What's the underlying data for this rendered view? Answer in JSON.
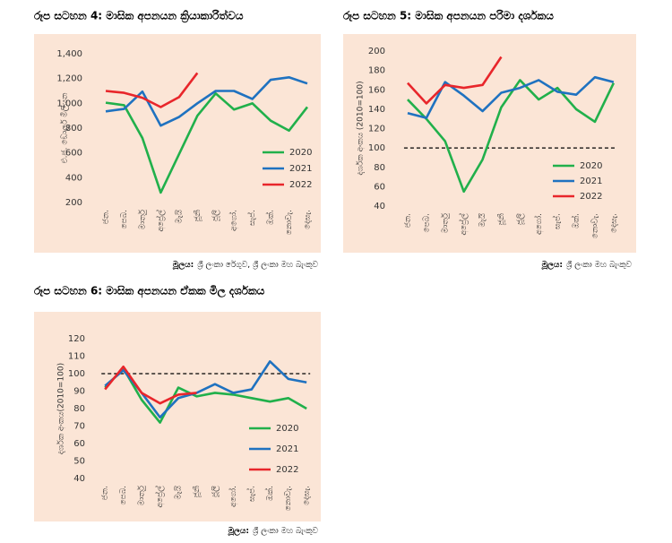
{
  "chart_data": [
    {
      "type": "line",
      "title": "රූප සටහන 4: මාසික අපනයන ක්‍රියාකාරිත්වය",
      "y_label": "එ.ජ. ඩොලර් මිලියන",
      "categories": [
        "ජන.",
        "පෙබ.",
        "මාර්තු",
        "අප්‍රේල්",
        "මැයි",
        "ජූනි",
        "ජූලි",
        "අගෝ.",
        "සැප්.",
        "ඔක්.",
        "නොවැ.",
        "දෙසැ."
      ],
      "series": [
        {
          "name": "2020",
          "color": "#21b04b",
          "values": [
            1005,
            985,
            720,
            280,
            590,
            900,
            1080,
            950,
            1000,
            860,
            780,
            970
          ]
        },
        {
          "name": "2021",
          "color": "#1f72c0",
          "values": [
            935,
            955,
            1095,
            820,
            890,
            1000,
            1100,
            1100,
            1035,
            1190,
            1210,
            1160
          ]
        },
        {
          "name": "2022",
          "color": "#e8262b",
          "values": [
            1100,
            1085,
            1045,
            970,
            1050,
            1245,
            null,
            null,
            null,
            null,
            null,
            null
          ]
        }
      ],
      "ylim": [
        200,
        1400
      ],
      "yticks": [
        200,
        400,
        600,
        800,
        {
          "value": 1000,
          "label": "1,000"
        },
        {
          "value": 1200,
          "label": "1,200"
        },
        {
          "value": 1400,
          "label": "1,400"
        }
      ],
      "legend": "right",
      "background": "#fbe5d6",
      "source_label": "මූලය:",
      "source": "ශ්‍රී ලංකා රේගුව, ශ්‍රී ලංකා මහ බැංකුව"
    },
    {
      "type": "line",
      "title": "රූප සටහන 5: මාසික අපනයන පරිමා දර්ශකය",
      "y_label": "දර්ශක අංකය (2010=100)",
      "categories": [
        "ජන.",
        "පෙබ.",
        "මාර්තු",
        "අප්‍රේල්",
        "මැයි",
        "ජූනි",
        "ජූලි",
        "අගෝ.",
        "සැප්.",
        "ඔක්.",
        "නොවැ.",
        "දෙසැ."
      ],
      "series": [
        {
          "name": "2020",
          "color": "#21b04b",
          "values": [
            150,
            130,
            107,
            55,
            88,
            142,
            170,
            150,
            162,
            140,
            127,
            167
          ]
        },
        {
          "name": "2021",
          "color": "#1f72c0",
          "values": [
            136,
            131,
            168,
            154,
            138,
            157,
            162,
            170,
            158,
            155,
            173,
            168
          ]
        },
        {
          "name": "2022",
          "color": "#e8262b",
          "values": [
            167,
            146,
            165,
            162,
            165,
            194,
            null,
            null,
            null,
            null,
            null,
            null
          ]
        }
      ],
      "ylim": [
        40,
        200
      ],
      "yticks": [
        40,
        60,
        80,
        100,
        120,
        140,
        160,
        180,
        200
      ],
      "reference_line": 100,
      "legend": "right",
      "background": "#fbe5d6",
      "source_label": "මූලය:",
      "source": "ශ්‍රී ලංකා මහ බැංකුව"
    },
    {
      "type": "line",
      "title": "රූප සටහන 6: මාසික අපනයන ඒකක මිල දර්ශකය",
      "y_label": "දර්ශක අංකය(2010=100)",
      "categories": [
        "ජන.",
        "පෙබ.",
        "මාර්තු",
        "අප්‍රේල්",
        "මැයි",
        "ජූනි",
        "ජූලි",
        "අගෝ.",
        "සැප්.",
        "ඔක්.",
        "නොවැ.",
        "දෙසැ."
      ],
      "series": [
        {
          "name": "2020",
          "color": "#21b04b",
          "values": [
            92,
            103,
            85,
            72,
            92,
            87,
            89,
            88,
            86,
            84,
            86,
            80
          ]
        },
        {
          "name": "2021",
          "color": "#1f72c0",
          "values": [
            93,
            102,
            89,
            75,
            86,
            89,
            94,
            89,
            91,
            107,
            97,
            95
          ]
        },
        {
          "name": "2022",
          "color": "#e8262b",
          "values": [
            91,
            104,
            89,
            83,
            88,
            89,
            null,
            null,
            null,
            null,
            null,
            null
          ]
        }
      ],
      "ylim": [
        40,
        120
      ],
      "yticks": [
        40,
        50,
        60,
        70,
        80,
        90,
        100,
        110,
        120
      ],
      "reference_line": 100,
      "legend": "right",
      "background": "#fbe5d6",
      "source_label": "මූලය:",
      "source": "ශ්‍රී ලංකා මහ බැංකුව"
    }
  ]
}
